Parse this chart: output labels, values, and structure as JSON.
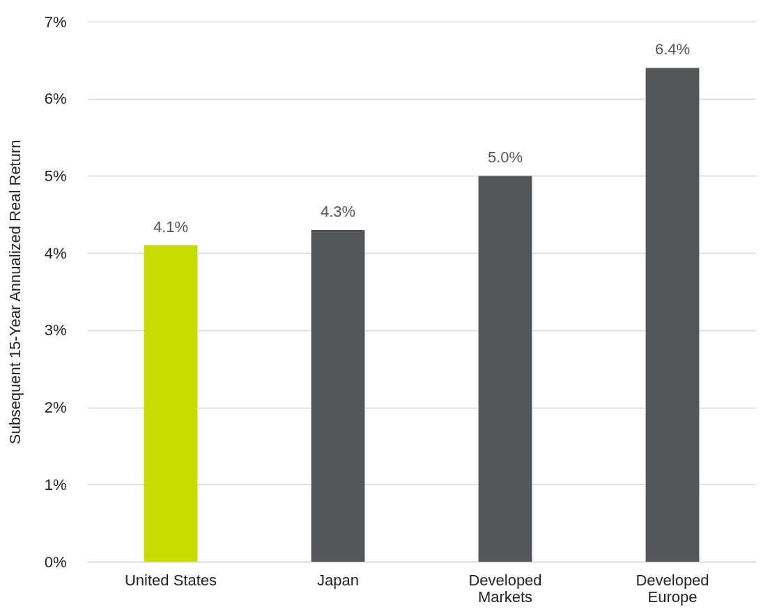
{
  "chart_data": {
    "type": "bar",
    "ylabel": "Subsequent 15-Year Annualized Real Return",
    "categories": [
      "United States",
      "Japan",
      "Developed Markets",
      "Developed Europe"
    ],
    "values": [
      4.1,
      4.3,
      5.0,
      6.4
    ],
    "colors": [
      "#c8dc00",
      "#55565a",
      "#55565a",
      "#55565a"
    ],
    "value_labels": [
      "4.1%",
      "4.3%",
      "5.0%",
      "6.4%"
    ],
    "ylim": [
      0,
      7
    ],
    "yticks": [
      {
        "value": 0,
        "label": "0%"
      },
      {
        "value": 1,
        "label": "1%"
      },
      {
        "value": 2,
        "label": "2%"
      },
      {
        "value": 3,
        "label": "3%"
      },
      {
        "value": 4,
        "label": "4%"
      },
      {
        "value": 5,
        "label": "5%"
      },
      {
        "value": 6,
        "label": "6%"
      },
      {
        "value": 7,
        "label": "7%"
      }
    ],
    "grid": "y"
  }
}
